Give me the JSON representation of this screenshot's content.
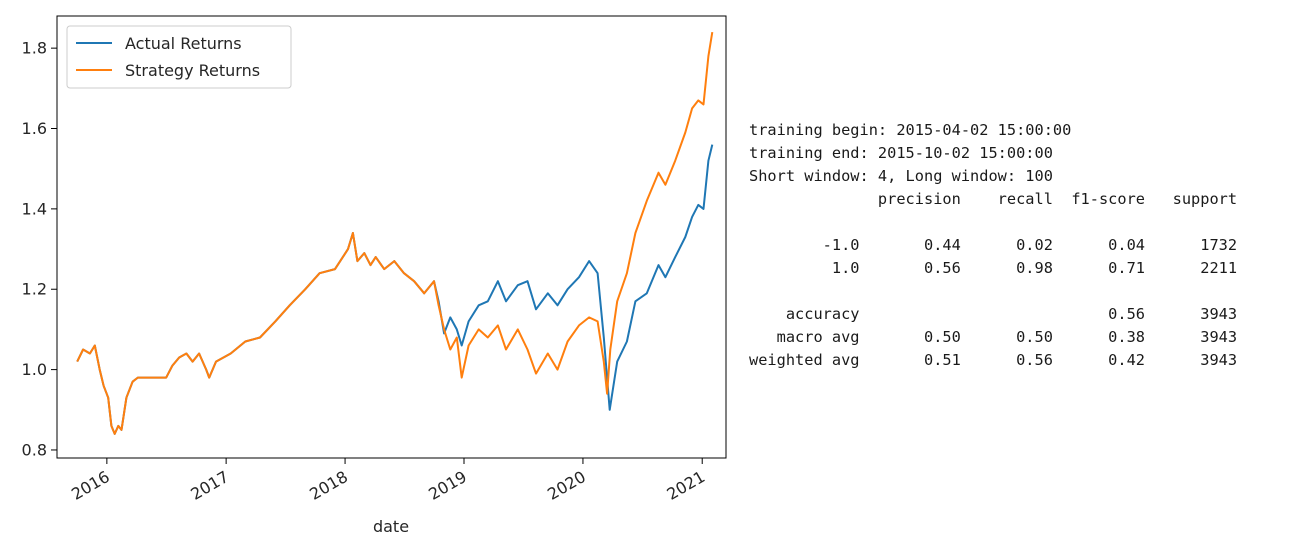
{
  "chart_data": {
    "type": "line",
    "xlabel": "date",
    "ylabel": "",
    "ylim": [
      0.78,
      1.88
    ],
    "xlim": [
      "2015-08-01",
      "2021-03-15"
    ],
    "yticks": [
      "0.8",
      "1.0",
      "1.2",
      "1.4",
      "1.6",
      "1.8"
    ],
    "xticks": [
      "2016",
      "2017",
      "2018",
      "2019",
      "2020",
      "2021"
    ],
    "grid": false,
    "legend_position": "top-left",
    "series": [
      {
        "name": "Actual Returns",
        "color": "#1f77b4",
        "points": [
          [
            "2015-10-02",
            1.02
          ],
          [
            "2015-10-20",
            1.05
          ],
          [
            "2015-11-10",
            1.04
          ],
          [
            "2015-11-25",
            1.06
          ],
          [
            "2015-12-10",
            1.0
          ],
          [
            "2015-12-22",
            0.96
          ],
          [
            "2016-01-05",
            0.93
          ],
          [
            "2016-01-15",
            0.86
          ],
          [
            "2016-01-25",
            0.84
          ],
          [
            "2016-02-05",
            0.86
          ],
          [
            "2016-02-15",
            0.85
          ],
          [
            "2016-03-01",
            0.93
          ],
          [
            "2016-03-20",
            0.97
          ],
          [
            "2016-04-05",
            0.98
          ],
          [
            "2016-06-15",
            0.98
          ],
          [
            "2016-07-01",
            0.98
          ],
          [
            "2016-07-20",
            1.01
          ],
          [
            "2016-08-10",
            1.03
          ],
          [
            "2016-09-01",
            1.04
          ],
          [
            "2016-09-20",
            1.02
          ],
          [
            "2016-10-10",
            1.04
          ],
          [
            "2016-11-01",
            1.0
          ],
          [
            "2016-11-10",
            0.98
          ],
          [
            "2016-12-01",
            1.02
          ],
          [
            "2017-01-15",
            1.04
          ],
          [
            "2017-03-01",
            1.07
          ],
          [
            "2017-04-15",
            1.08
          ],
          [
            "2017-06-01",
            1.12
          ],
          [
            "2017-07-15",
            1.16
          ],
          [
            "2017-09-01",
            1.2
          ],
          [
            "2017-10-15",
            1.24
          ],
          [
            "2017-12-01",
            1.25
          ],
          [
            "2018-01-10",
            1.3
          ],
          [
            "2018-01-25",
            1.34
          ],
          [
            "2018-02-08",
            1.27
          ],
          [
            "2018-03-01",
            1.29
          ],
          [
            "2018-03-20",
            1.26
          ],
          [
            "2018-04-05",
            1.28
          ],
          [
            "2018-05-01",
            1.25
          ],
          [
            "2018-06-01",
            1.27
          ],
          [
            "2018-07-01",
            1.24
          ],
          [
            "2018-08-01",
            1.22
          ],
          [
            "2018-09-01",
            1.19
          ],
          [
            "2018-10-01",
            1.22
          ],
          [
            "2018-10-15",
            1.17
          ],
          [
            "2018-11-01",
            1.09
          ],
          [
            "2018-11-20",
            1.13
          ],
          [
            "2018-12-10",
            1.1
          ],
          [
            "2018-12-25",
            1.06
          ],
          [
            "2019-01-15",
            1.12
          ],
          [
            "2019-02-15",
            1.16
          ],
          [
            "2019-03-15",
            1.17
          ],
          [
            "2019-04-15",
            1.22
          ],
          [
            "2019-05-10",
            1.17
          ],
          [
            "2019-06-15",
            1.21
          ],
          [
            "2019-07-15",
            1.22
          ],
          [
            "2019-08-10",
            1.15
          ],
          [
            "2019-09-15",
            1.19
          ],
          [
            "2019-10-15",
            1.16
          ],
          [
            "2019-11-15",
            1.2
          ],
          [
            "2019-12-20",
            1.23
          ],
          [
            "2020-01-20",
            1.27
          ],
          [
            "2020-02-15",
            1.24
          ],
          [
            "2020-03-05",
            1.08
          ],
          [
            "2020-03-23",
            0.9
          ],
          [
            "2020-04-15",
            1.02
          ],
          [
            "2020-05-15",
            1.07
          ],
          [
            "2020-06-10",
            1.17
          ],
          [
            "2020-07-15",
            1.19
          ],
          [
            "2020-08-20",
            1.26
          ],
          [
            "2020-09-10",
            1.23
          ],
          [
            "2020-10-10",
            1.28
          ],
          [
            "2020-11-10",
            1.33
          ],
          [
            "2020-12-01",
            1.38
          ],
          [
            "2020-12-20",
            1.41
          ],
          [
            "2021-01-05",
            1.4
          ],
          [
            "2021-01-20",
            1.52
          ],
          [
            "2021-02-01",
            1.56
          ]
        ]
      },
      {
        "name": "Strategy Returns",
        "color": "#ff7f0e",
        "points": [
          [
            "2015-10-02",
            1.02
          ],
          [
            "2015-10-20",
            1.05
          ],
          [
            "2015-11-10",
            1.04
          ],
          [
            "2015-11-25",
            1.06
          ],
          [
            "2015-12-10",
            1.0
          ],
          [
            "2015-12-22",
            0.96
          ],
          [
            "2016-01-05",
            0.93
          ],
          [
            "2016-01-15",
            0.86
          ],
          [
            "2016-01-25",
            0.84
          ],
          [
            "2016-02-05",
            0.86
          ],
          [
            "2016-02-15",
            0.85
          ],
          [
            "2016-03-01",
            0.93
          ],
          [
            "2016-03-20",
            0.97
          ],
          [
            "2016-04-05",
            0.98
          ],
          [
            "2016-06-15",
            0.98
          ],
          [
            "2016-07-01",
            0.98
          ],
          [
            "2016-07-20",
            1.01
          ],
          [
            "2016-08-10",
            1.03
          ],
          [
            "2016-09-01",
            1.04
          ],
          [
            "2016-09-20",
            1.02
          ],
          [
            "2016-10-10",
            1.04
          ],
          [
            "2016-11-01",
            1.0
          ],
          [
            "2016-11-10",
            0.98
          ],
          [
            "2016-12-01",
            1.02
          ],
          [
            "2017-01-15",
            1.04
          ],
          [
            "2017-03-01",
            1.07
          ],
          [
            "2017-04-15",
            1.08
          ],
          [
            "2017-06-01",
            1.12
          ],
          [
            "2017-07-15",
            1.16
          ],
          [
            "2017-09-01",
            1.2
          ],
          [
            "2017-10-15",
            1.24
          ],
          [
            "2017-12-01",
            1.25
          ],
          [
            "2018-01-10",
            1.3
          ],
          [
            "2018-01-25",
            1.34
          ],
          [
            "2018-02-08",
            1.27
          ],
          [
            "2018-03-01",
            1.29
          ],
          [
            "2018-03-20",
            1.26
          ],
          [
            "2018-04-05",
            1.28
          ],
          [
            "2018-05-01",
            1.25
          ],
          [
            "2018-06-01",
            1.27
          ],
          [
            "2018-07-01",
            1.24
          ],
          [
            "2018-08-01",
            1.22
          ],
          [
            "2018-09-01",
            1.19
          ],
          [
            "2018-10-01",
            1.22
          ],
          [
            "2018-10-15",
            1.16
          ],
          [
            "2018-11-01",
            1.1
          ],
          [
            "2018-11-20",
            1.05
          ],
          [
            "2018-12-10",
            1.08
          ],
          [
            "2018-12-25",
            0.98
          ],
          [
            "2019-01-15",
            1.06
          ],
          [
            "2019-02-15",
            1.1
          ],
          [
            "2019-03-15",
            1.08
          ],
          [
            "2019-04-15",
            1.11
          ],
          [
            "2019-05-10",
            1.05
          ],
          [
            "2019-06-15",
            1.1
          ],
          [
            "2019-07-15",
            1.05
          ],
          [
            "2019-08-10",
            0.99
          ],
          [
            "2019-09-15",
            1.04
          ],
          [
            "2019-10-15",
            1.0
          ],
          [
            "2019-11-15",
            1.07
          ],
          [
            "2019-12-20",
            1.11
          ],
          [
            "2020-01-20",
            1.13
          ],
          [
            "2020-02-15",
            1.12
          ],
          [
            "2020-03-05",
            1.02
          ],
          [
            "2020-03-15",
            0.94
          ],
          [
            "2020-03-25",
            1.05
          ],
          [
            "2020-04-15",
            1.17
          ],
          [
            "2020-05-15",
            1.24
          ],
          [
            "2020-06-10",
            1.34
          ],
          [
            "2020-07-15",
            1.42
          ],
          [
            "2020-08-20",
            1.49
          ],
          [
            "2020-09-10",
            1.46
          ],
          [
            "2020-10-10",
            1.52
          ],
          [
            "2020-11-10",
            1.59
          ],
          [
            "2020-12-01",
            1.65
          ],
          [
            "2020-12-20",
            1.67
          ],
          [
            "2021-01-05",
            1.66
          ],
          [
            "2021-01-20",
            1.78
          ],
          [
            "2021-02-01",
            1.84
          ]
        ]
      }
    ]
  },
  "report": {
    "lines": [
      "training begin: 2015-04-02 15:00:00",
      "training end: 2015-10-02 15:00:00",
      "Short window: 4, Long window: 100",
      "              precision    recall  f1-score   support",
      "",
      "        -1.0       0.44      0.02      0.04      1732",
      "         1.0       0.56      0.98      0.71      2211",
      "",
      "    accuracy                           0.56      3943",
      "   macro avg       0.50      0.50      0.38      3943",
      "weighted avg       0.51      0.56      0.42      3943"
    ]
  }
}
